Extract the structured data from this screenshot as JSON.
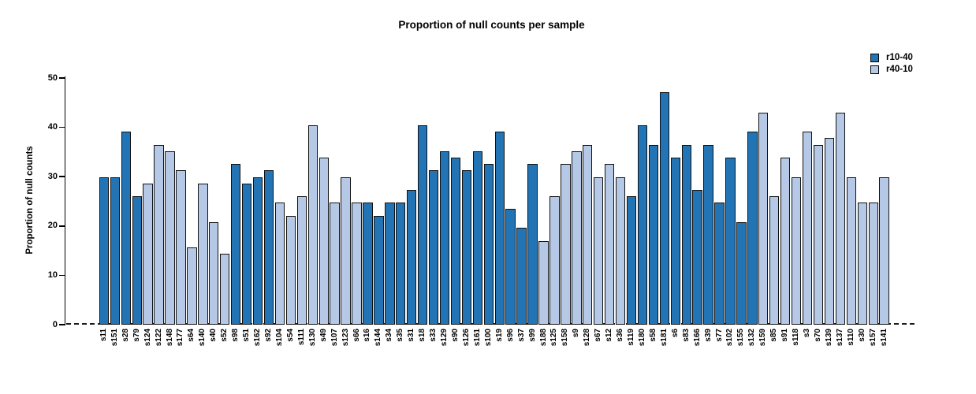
{
  "chart_data": {
    "type": "bar",
    "title": "Proportion of null counts per sample",
    "ylabel": "Proportion of null counts",
    "xlabel": "",
    "ylim": [
      0,
      50
    ],
    "yticks": [
      0,
      10,
      20,
      30,
      40,
      50
    ],
    "grid": false,
    "legend_position": "top-right",
    "baseline_style": "dashed",
    "series": [
      {
        "name": "r10-40",
        "color": "#2274b5"
      },
      {
        "name": "r40-10",
        "color": "#b5c9e7"
      }
    ],
    "bars": [
      {
        "sample": "s11",
        "value": 29.9,
        "group": "r10-40"
      },
      {
        "sample": "s151",
        "value": 29.9,
        "group": "r10-40"
      },
      {
        "sample": "s28",
        "value": 39.1,
        "group": "r10-40"
      },
      {
        "sample": "s79",
        "value": 26.1,
        "group": "r10-40"
      },
      {
        "sample": "s124",
        "value": 28.6,
        "group": "r40-10"
      },
      {
        "sample": "s122",
        "value": 36.5,
        "group": "r40-10"
      },
      {
        "sample": "s148",
        "value": 35.2,
        "group": "r40-10"
      },
      {
        "sample": "s177",
        "value": 31.3,
        "group": "r40-10"
      },
      {
        "sample": "s64",
        "value": 15.7,
        "group": "r40-10"
      },
      {
        "sample": "s140",
        "value": 28.6,
        "group": "r40-10"
      },
      {
        "sample": "s40",
        "value": 20.8,
        "group": "r40-10"
      },
      {
        "sample": "s52",
        "value": 14.4,
        "group": "r40-10"
      },
      {
        "sample": "s98",
        "value": 32.6,
        "group": "r10-40"
      },
      {
        "sample": "s51",
        "value": 28.6,
        "group": "r10-40"
      },
      {
        "sample": "s162",
        "value": 29.9,
        "group": "r10-40"
      },
      {
        "sample": "s92",
        "value": 31.3,
        "group": "r10-40"
      },
      {
        "sample": "s104",
        "value": 24.7,
        "group": "r40-10"
      },
      {
        "sample": "s54",
        "value": 22.1,
        "group": "r40-10"
      },
      {
        "sample": "s111",
        "value": 26.1,
        "group": "r40-10"
      },
      {
        "sample": "s130",
        "value": 40.4,
        "group": "r40-10"
      },
      {
        "sample": "s49",
        "value": 33.9,
        "group": "r40-10"
      },
      {
        "sample": "s107",
        "value": 24.7,
        "group": "r40-10"
      },
      {
        "sample": "s123",
        "value": 29.9,
        "group": "r40-10"
      },
      {
        "sample": "s66",
        "value": 24.7,
        "group": "r40-10"
      },
      {
        "sample": "s16",
        "value": 24.7,
        "group": "r10-40"
      },
      {
        "sample": "s144",
        "value": 22.1,
        "group": "r10-40"
      },
      {
        "sample": "s34",
        "value": 24.7,
        "group": "r10-40"
      },
      {
        "sample": "s35",
        "value": 24.7,
        "group": "r10-40"
      },
      {
        "sample": "s31",
        "value": 27.3,
        "group": "r10-40"
      },
      {
        "sample": "s18",
        "value": 40.4,
        "group": "r10-40"
      },
      {
        "sample": "s33",
        "value": 31.3,
        "group": "r10-40"
      },
      {
        "sample": "s129",
        "value": 35.2,
        "group": "r10-40"
      },
      {
        "sample": "s90",
        "value": 33.9,
        "group": "r10-40"
      },
      {
        "sample": "s126",
        "value": 31.3,
        "group": "r10-40"
      },
      {
        "sample": "s161",
        "value": 35.2,
        "group": "r10-40"
      },
      {
        "sample": "s100",
        "value": 32.6,
        "group": "r10-40"
      },
      {
        "sample": "s19",
        "value": 39.1,
        "group": "r10-40"
      },
      {
        "sample": "s96",
        "value": 23.5,
        "group": "r10-40"
      },
      {
        "sample": "s37",
        "value": 19.6,
        "group": "r10-40"
      },
      {
        "sample": "s99",
        "value": 32.6,
        "group": "r10-40"
      },
      {
        "sample": "s188",
        "value": 16.9,
        "group": "r40-10"
      },
      {
        "sample": "s125",
        "value": 26.1,
        "group": "r40-10"
      },
      {
        "sample": "s158",
        "value": 32.6,
        "group": "r40-10"
      },
      {
        "sample": "s9",
        "value": 35.2,
        "group": "r40-10"
      },
      {
        "sample": "s128",
        "value": 36.5,
        "group": "r40-10"
      },
      {
        "sample": "s67",
        "value": 29.9,
        "group": "r40-10"
      },
      {
        "sample": "s12",
        "value": 32.6,
        "group": "r40-10"
      },
      {
        "sample": "s36",
        "value": 29.9,
        "group": "r40-10"
      },
      {
        "sample": "s119",
        "value": 26.1,
        "group": "r10-40"
      },
      {
        "sample": "s180",
        "value": 40.4,
        "group": "r10-40"
      },
      {
        "sample": "s58",
        "value": 36.5,
        "group": "r10-40"
      },
      {
        "sample": "s181",
        "value": 47.2,
        "group": "r10-40"
      },
      {
        "sample": "s6",
        "value": 33.9,
        "group": "r10-40"
      },
      {
        "sample": "s83",
        "value": 36.5,
        "group": "r10-40"
      },
      {
        "sample": "s166",
        "value": 27.3,
        "group": "r10-40"
      },
      {
        "sample": "s39",
        "value": 36.5,
        "group": "r10-40"
      },
      {
        "sample": "s77",
        "value": 24.7,
        "group": "r10-40"
      },
      {
        "sample": "s102",
        "value": 33.9,
        "group": "r10-40"
      },
      {
        "sample": "s155",
        "value": 20.8,
        "group": "r10-40"
      },
      {
        "sample": "s132",
        "value": 39.1,
        "group": "r10-40"
      },
      {
        "sample": "s159",
        "value": 43.0,
        "group": "r40-10"
      },
      {
        "sample": "s85",
        "value": 26.1,
        "group": "r40-10"
      },
      {
        "sample": "s91",
        "value": 33.9,
        "group": "r40-10"
      },
      {
        "sample": "s118",
        "value": 29.9,
        "group": "r40-10"
      },
      {
        "sample": "s3",
        "value": 39.1,
        "group": "r40-10"
      },
      {
        "sample": "s70",
        "value": 36.5,
        "group": "r40-10"
      },
      {
        "sample": "s139",
        "value": 37.8,
        "group": "r40-10"
      },
      {
        "sample": "s137",
        "value": 43.0,
        "group": "r40-10"
      },
      {
        "sample": "s110",
        "value": 29.9,
        "group": "r40-10"
      },
      {
        "sample": "s30",
        "value": 24.7,
        "group": "r40-10"
      },
      {
        "sample": "s157",
        "value": 24.7,
        "group": "r40-10"
      },
      {
        "sample": "s141",
        "value": 29.9,
        "group": "r40-10"
      }
    ]
  }
}
